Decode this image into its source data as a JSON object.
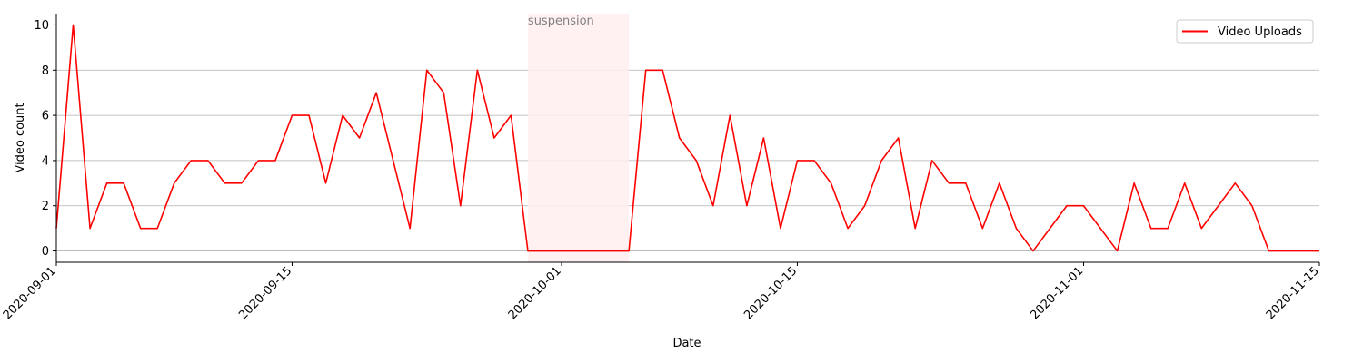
{
  "chart_data": {
    "type": "line",
    "xlabel": "Date",
    "ylabel": "Video count",
    "xlim": [
      "2020-09-01",
      "2020-11-15"
    ],
    "ylim": [
      -0.5,
      10.5
    ],
    "yticks": [
      0,
      2,
      4,
      6,
      8,
      10
    ],
    "xticks": [
      "2020-09-01",
      "2020-09-15",
      "2020-10-01",
      "2020-10-15",
      "2020-11-01",
      "2020-11-15"
    ],
    "grid": "horizontal",
    "legend_position": "top-right",
    "colors": {
      "line": "#ff0000",
      "shade": "#ffeeee",
      "annotation": "#808080",
      "grid": "#b0b0b0"
    },
    "shaded_region": {
      "label": "suspension",
      "start": "2020-09-29",
      "end": "2020-10-05"
    },
    "series": [
      {
        "name": "Video Uploads",
        "x": [
          "2020-09-01",
          "2020-09-02",
          "2020-09-03",
          "2020-09-04",
          "2020-09-05",
          "2020-09-06",
          "2020-09-07",
          "2020-09-08",
          "2020-09-09",
          "2020-09-10",
          "2020-09-11",
          "2020-09-12",
          "2020-09-13",
          "2020-09-14",
          "2020-09-15",
          "2020-09-16",
          "2020-09-17",
          "2020-09-18",
          "2020-09-19",
          "2020-09-20",
          "2020-09-21",
          "2020-09-22",
          "2020-09-23",
          "2020-09-24",
          "2020-09-25",
          "2020-09-26",
          "2020-09-27",
          "2020-09-28",
          "2020-09-29",
          "2020-09-30",
          "2020-10-01",
          "2020-10-02",
          "2020-10-03",
          "2020-10-04",
          "2020-10-05",
          "2020-10-06",
          "2020-10-07",
          "2020-10-08",
          "2020-10-09",
          "2020-10-10",
          "2020-10-11",
          "2020-10-12",
          "2020-10-13",
          "2020-10-14",
          "2020-10-15",
          "2020-10-16",
          "2020-10-17",
          "2020-10-18",
          "2020-10-19",
          "2020-10-20",
          "2020-10-21",
          "2020-10-22",
          "2020-10-23",
          "2020-10-24",
          "2020-10-25",
          "2020-10-26",
          "2020-10-27",
          "2020-10-28",
          "2020-10-29",
          "2020-10-30",
          "2020-10-31",
          "2020-11-01",
          "2020-11-02",
          "2020-11-03",
          "2020-11-04",
          "2020-11-05",
          "2020-11-06",
          "2020-11-07",
          "2020-11-08",
          "2020-11-09",
          "2020-11-10",
          "2020-11-11",
          "2020-11-12",
          "2020-11-13",
          "2020-11-14",
          "2020-11-15"
        ],
        "y": [
          1,
          10,
          1,
          3,
          3,
          1,
          1,
          3,
          4,
          4,
          3,
          3,
          4,
          4,
          6,
          6,
          3,
          6,
          5,
          7,
          4,
          1,
          8,
          7,
          2,
          8,
          5,
          6,
          0,
          0,
          0,
          0,
          0,
          0,
          0,
          8,
          8,
          5,
          4,
          2,
          6,
          2,
          5,
          1,
          4,
          4,
          3,
          1,
          2,
          4,
          5,
          1,
          4,
          3,
          3,
          1,
          3,
          1,
          0,
          1,
          2,
          2,
          1,
          0,
          3,
          1,
          1,
          3,
          1,
          2,
          3,
          2,
          0,
          0,
          0,
          0
        ]
      }
    ]
  }
}
